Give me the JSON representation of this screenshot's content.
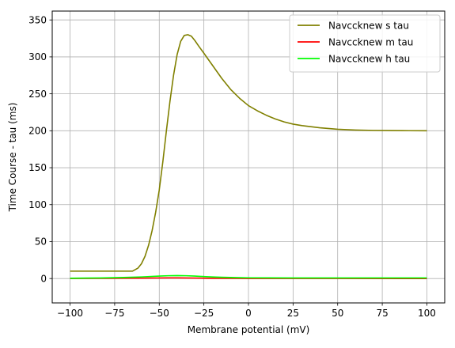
{
  "chart_data": {
    "type": "line",
    "title": "",
    "xlabel": "Membrane potential (mV)",
    "ylabel": "Time Course - tau (ms)",
    "xlim": [
      -110,
      110
    ],
    "ylim": [
      -33,
      362
    ],
    "xticks": [
      -100,
      -75,
      -50,
      -25,
      0,
      25,
      50,
      75,
      100
    ],
    "xtick_labels": [
      "−100",
      "−75",
      "−50",
      "−25",
      "0",
      "25",
      "50",
      "75",
      "100"
    ],
    "yticks": [
      0,
      50,
      100,
      150,
      200,
      250,
      300,
      350
    ],
    "ytick_labels": [
      "0",
      "50",
      "100",
      "150",
      "200",
      "250",
      "300",
      "350"
    ],
    "grid": true,
    "legend": "top-right",
    "series": [
      {
        "name": "Navccknew s tau",
        "color": "#808000",
        "x": [
          -100,
          -90,
          -80,
          -70,
          -65,
          -62,
          -60,
          -58,
          -56,
          -54,
          -52,
          -50,
          -48,
          -46,
          -44,
          -42,
          -40,
          -38,
          -36,
          -34,
          -32,
          -30,
          -28,
          -25,
          -20,
          -15,
          -10,
          -5,
          0,
          5,
          10,
          15,
          20,
          25,
          30,
          40,
          50,
          60,
          70,
          80,
          90,
          100
        ],
        "y": [
          10,
          10,
          10,
          10,
          10,
          14,
          20,
          30,
          45,
          65,
          90,
          120,
          158,
          200,
          240,
          275,
          303,
          321,
          329,
          330,
          328,
          322,
          315,
          305,
          288,
          271,
          256,
          244,
          234,
          227,
          221,
          216,
          212,
          209,
          207,
          204,
          202,
          201,
          200.5,
          200.3,
          200.1,
          200
        ]
      },
      {
        "name": "Navccknew m tau",
        "color": "#ff0000",
        "x": [
          -100,
          -80,
          -60,
          -50,
          -45,
          -40,
          -35,
          -30,
          -20,
          -10,
          0,
          20,
          50,
          100
        ],
        "y": [
          0.1,
          0.2,
          0.5,
          0.8,
          0.9,
          0.9,
          0.8,
          0.6,
          0.3,
          0.2,
          0.1,
          0.1,
          0.05,
          0.02
        ]
      },
      {
        "name": "Navccknew h tau",
        "color": "#00ff00",
        "x": [
          -100,
          -90,
          -80,
          -70,
          -60,
          -50,
          -45,
          -40,
          -35,
          -30,
          -25,
          -20,
          -15,
          -10,
          -5,
          0,
          10,
          25,
          50,
          75,
          100
        ],
        "y": [
          0.4,
          0.6,
          0.9,
          1.4,
          2.2,
          3.3,
          3.8,
          4.0,
          3.8,
          3.3,
          2.7,
          2.1,
          1.7,
          1.4,
          1.2,
          1.0,
          0.9,
          0.8,
          0.8,
          0.8,
          0.8
        ]
      }
    ]
  }
}
